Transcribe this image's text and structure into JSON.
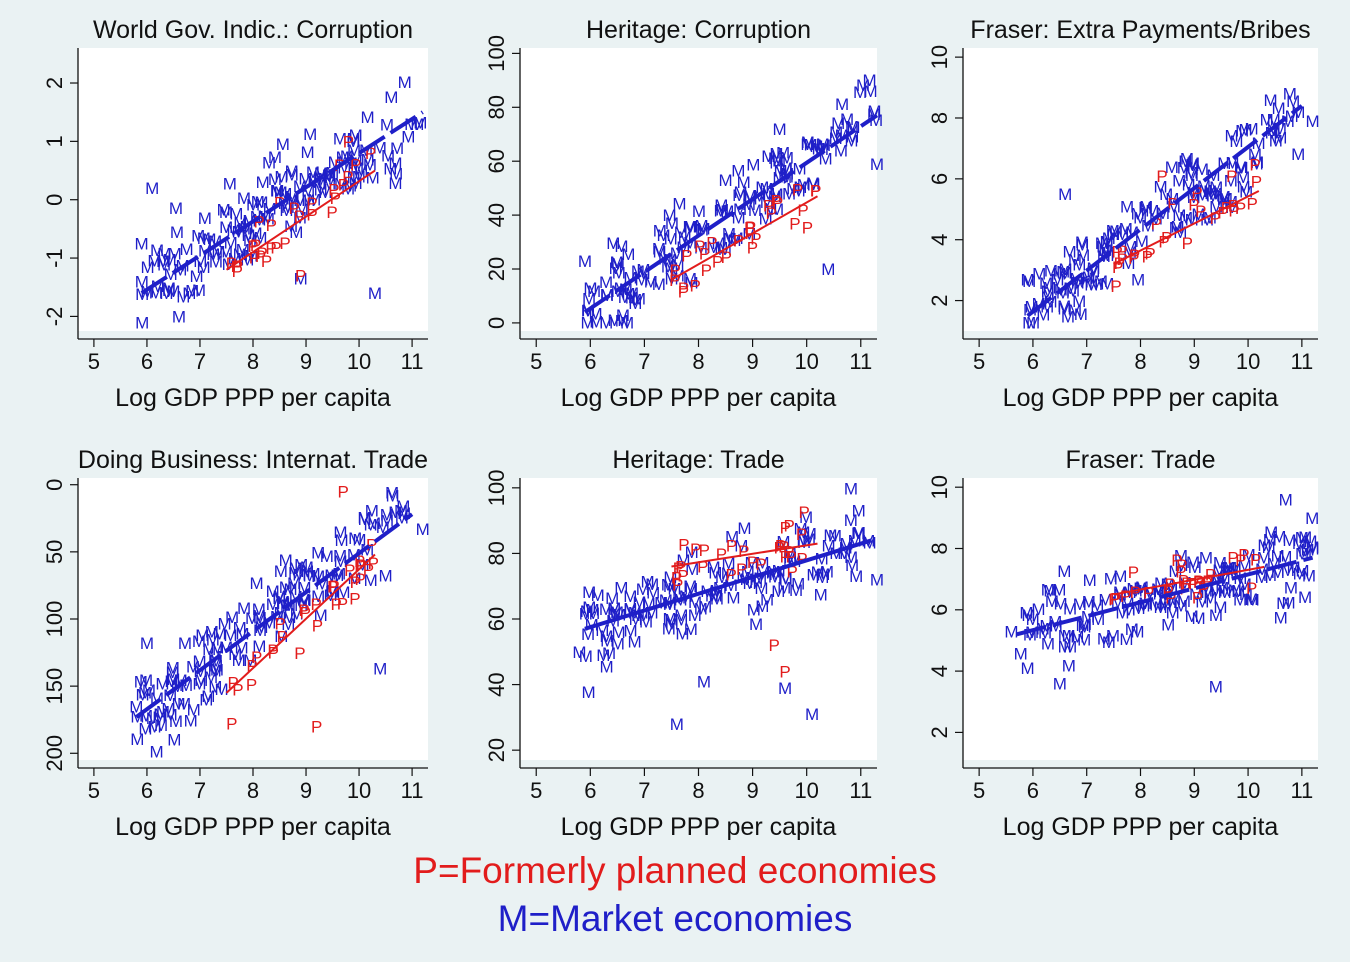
{
  "colors": {
    "background": "#eaf2f3",
    "plot_background": "#ffffff",
    "market": "#1f1fc8",
    "planned": "#e21c1c",
    "axis": "#111111"
  },
  "legend": {
    "planned": "P=Formerly planned economies",
    "market": "M=Market economies"
  },
  "chart_data": [
    {
      "type": "scatter",
      "title": "World Gov. Indic.: Corruption",
      "xlabel": "Log GDP PPP per capita",
      "ylabel": "",
      "xlim": [
        4.7,
        11.3
      ],
      "ylim": [
        -2.25,
        2.6
      ],
      "xticks": [
        5,
        6,
        7,
        8,
        9,
        10,
        11
      ],
      "yticks": [
        -2,
        -1,
        0,
        1,
        2
      ],
      "y_reversed": false,
      "marker_labels": [
        "M",
        "P"
      ],
      "fit_lines": [
        {
          "group": "M",
          "x": [
            5.9,
            11.2
          ],
          "y": [
            -1.6,
            1.5
          ],
          "style": "dashed"
        },
        {
          "group": "P",
          "x": [
            7.5,
            10.3
          ],
          "y": [
            -1.2,
            0.5
          ],
          "style": "solid"
        }
      ],
      "outliers": [
        {
          "label": "M",
          "x": 5.9,
          "y": -0.75
        },
        {
          "label": "M",
          "x": 6.1,
          "y": 0.2
        },
        {
          "label": "M",
          "x": 6.8,
          "y": -1.6
        },
        {
          "label": "M",
          "x": 8.9,
          "y": -1.35
        },
        {
          "label": "M",
          "x": 10.3,
          "y": -1.6
        },
        {
          "label": "M",
          "x": 10.7,
          "y": 0.45
        },
        {
          "label": "M",
          "x": 11.1,
          "y": 1.3
        },
        {
          "label": "P",
          "x": 8.9,
          "y": -1.3
        },
        {
          "label": "P",
          "x": 9.8,
          "y": 1.0
        }
      ]
    },
    {
      "type": "scatter",
      "title": "Heritage: Corruption",
      "xlabel": "Log GDP PPP per capita",
      "ylabel": "",
      "xlim": [
        4.7,
        11.3
      ],
      "ylim": [
        -3,
        102
      ],
      "xticks": [
        5,
        6,
        7,
        8,
        9,
        10,
        11
      ],
      "yticks": [
        0,
        20,
        40,
        60,
        80,
        100
      ],
      "y_reversed": false,
      "marker_labels": [
        "M",
        "P"
      ],
      "fit_lines": [
        {
          "group": "M",
          "x": [
            5.9,
            11.3
          ],
          "y": [
            4,
            77
          ],
          "style": "dashed"
        },
        {
          "group": "P",
          "x": [
            7.5,
            10.2
          ],
          "y": [
            16,
            47
          ],
          "style": "solid"
        }
      ],
      "outliers": [
        {
          "label": "M",
          "x": 5.9,
          "y": 23
        },
        {
          "label": "M",
          "x": 6.9,
          "y": 9
        },
        {
          "label": "M",
          "x": 7.6,
          "y": 26
        },
        {
          "label": "M",
          "x": 8.5,
          "y": 53
        },
        {
          "label": "M",
          "x": 10.4,
          "y": 20
        },
        {
          "label": "M",
          "x": 11.3,
          "y": 59
        },
        {
          "label": "M",
          "x": 9.5,
          "y": 72
        }
      ]
    },
    {
      "type": "scatter",
      "title": "Fraser: Extra Payments/Bribes",
      "xlabel": "Log GDP PPP per capita",
      "ylabel": "",
      "xlim": [
        4.7,
        11.3
      ],
      "ylim": [
        1,
        10.3
      ],
      "xticks": [
        5,
        6,
        7,
        8,
        9,
        10,
        11
      ],
      "yticks": [
        2,
        4,
        6,
        8,
        10
      ],
      "y_reversed": false,
      "marker_labels": [
        "M",
        "P"
      ],
      "fit_lines": [
        {
          "group": "M",
          "x": [
            5.9,
            11.0
          ],
          "y": [
            1.5,
            8.4
          ],
          "style": "dashed"
        },
        {
          "group": "P",
          "x": [
            7.5,
            10.2
          ],
          "y": [
            3.2,
            5.6
          ],
          "style": "solid"
        }
      ],
      "outliers": [
        {
          "label": "M",
          "x": 5.9,
          "y": 2.7
        },
        {
          "label": "M",
          "x": 6.6,
          "y": 5.5
        },
        {
          "label": "M",
          "x": 11.2,
          "y": 7.9
        },
        {
          "label": "P",
          "x": 8.4,
          "y": 6.1
        }
      ]
    },
    {
      "type": "scatter",
      "title": "Doing Business: Internat. Trade",
      "xlabel": "Log GDP PPP per capita",
      "ylabel": "",
      "xlim": [
        4.7,
        11.3
      ],
      "ylim": [
        -5,
        205
      ],
      "xticks": [
        5,
        6,
        7,
        8,
        9,
        10,
        11
      ],
      "yticks": [
        0,
        50,
        100,
        150,
        200
      ],
      "y_reversed": true,
      "marker_labels": [
        "M",
        "P"
      ],
      "fit_lines": [
        {
          "group": "M",
          "x": [
            5.8,
            11.0
          ],
          "y": [
            173,
            22
          ],
          "style": "dashed"
        },
        {
          "group": "P",
          "x": [
            7.5,
            10.3
          ],
          "y": [
            155,
            52
          ],
          "style": "solid"
        }
      ],
      "outliers": [
        {
          "label": "M",
          "x": 5.8,
          "y": 165
        },
        {
          "label": "M",
          "x": 6.0,
          "y": 118
        },
        {
          "label": "M",
          "x": 10.4,
          "y": 137
        },
        {
          "label": "M",
          "x": 11.2,
          "y": 33
        },
        {
          "label": "P",
          "x": 7.6,
          "y": 178
        },
        {
          "label": "P",
          "x": 9.2,
          "y": 180
        },
        {
          "label": "P",
          "x": 9.7,
          "y": 5
        }
      ]
    },
    {
      "type": "scatter",
      "title": "Heritage: Trade",
      "xlabel": "Log GDP PPP per capita",
      "ylabel": "",
      "xlim": [
        4.7,
        11.3
      ],
      "ylim": [
        17,
        103
      ],
      "xticks": [
        5,
        6,
        7,
        8,
        9,
        10,
        11
      ],
      "yticks": [
        20,
        40,
        60,
        80,
        100
      ],
      "y_reversed": false,
      "marker_labels": [
        "M",
        "P"
      ],
      "fit_lines": [
        {
          "group": "M",
          "x": [
            5.9,
            11.2
          ],
          "y": [
            57,
            84
          ],
          "style": "solid"
        },
        {
          "group": "P",
          "x": [
            7.5,
            10.2
          ],
          "y": [
            76,
            83
          ],
          "style": "solid"
        }
      ],
      "outliers": [
        {
          "label": "M",
          "x": 5.8,
          "y": 50
        },
        {
          "label": "M",
          "x": 7.6,
          "y": 28
        },
        {
          "label": "M",
          "x": 8.1,
          "y": 41
        },
        {
          "label": "M",
          "x": 9.6,
          "y": 39
        },
        {
          "label": "M",
          "x": 10.1,
          "y": 31
        },
        {
          "label": "M",
          "x": 11.3,
          "y": 72
        },
        {
          "label": "P",
          "x": 9.6,
          "y": 44
        },
        {
          "label": "P",
          "x": 9.4,
          "y": 52
        }
      ]
    },
    {
      "type": "scatter",
      "title": "Fraser: Trade",
      "xlabel": "Log GDP PPP per capita",
      "ylabel": "",
      "xlim": [
        4.7,
        11.3
      ],
      "ylim": [
        1.1,
        10.3
      ],
      "xticks": [
        5,
        6,
        7,
        8,
        9,
        10,
        11
      ],
      "yticks": [
        2,
        4,
        6,
        8,
        10
      ],
      "y_reversed": false,
      "marker_labels": [
        "M",
        "P"
      ],
      "fit_lines": [
        {
          "group": "M",
          "x": [
            5.7,
            11.2
          ],
          "y": [
            5.2,
            7.7
          ],
          "style": "dashed"
        },
        {
          "group": "P",
          "x": [
            7.5,
            10.3
          ],
          "y": [
            6.5,
            7.4
          ],
          "style": "solid"
        }
      ],
      "outliers": [
        {
          "label": "M",
          "x": 5.6,
          "y": 5.3
        },
        {
          "label": "M",
          "x": 5.9,
          "y": 4.1
        },
        {
          "label": "M",
          "x": 6.5,
          "y": 3.6
        },
        {
          "label": "M",
          "x": 9.4,
          "y": 3.5
        },
        {
          "label": "M",
          "x": 11.2,
          "y": 8.0
        },
        {
          "label": "M",
          "x": 10.7,
          "y": 9.6
        }
      ]
    }
  ]
}
